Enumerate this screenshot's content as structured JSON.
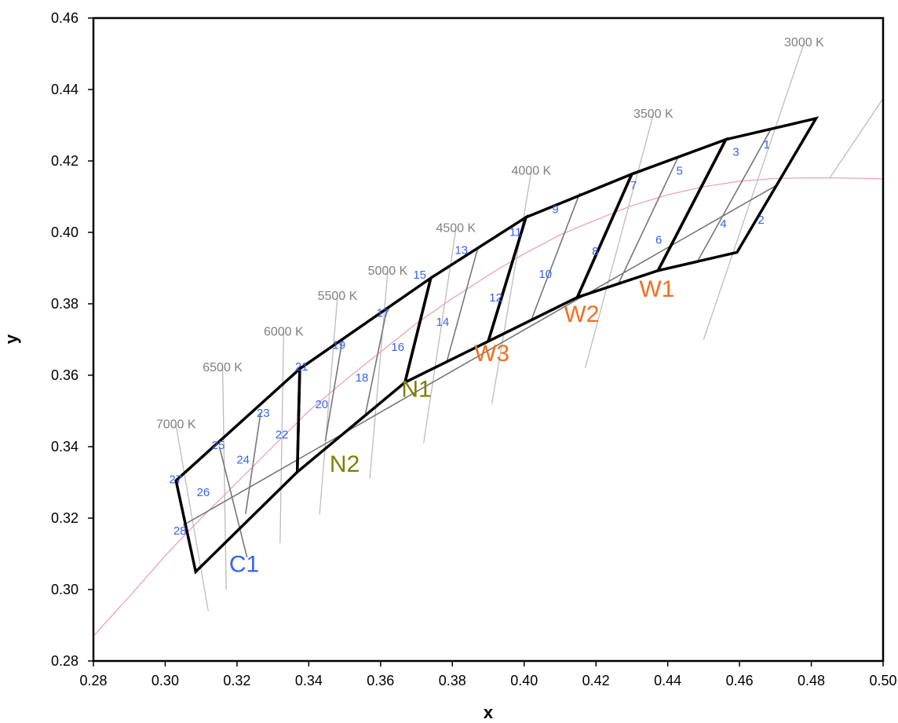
{
  "chart_data": {
    "type": "scatter",
    "title": "",
    "xlabel": "x",
    "ylabel": "y",
    "xlim": [
      0.28,
      0.5
    ],
    "ylim": [
      0.28,
      0.46
    ],
    "x_ticks": [
      "0.28",
      "0.30",
      "0.32",
      "0.34",
      "0.36",
      "0.38",
      "0.40",
      "0.42",
      "0.44",
      "0.46",
      "0.48",
      "0.50"
    ],
    "y_ticks": [
      "0.28",
      "0.30",
      "0.32",
      "0.34",
      "0.36",
      "0.38",
      "0.40",
      "0.42",
      "0.44",
      "0.46"
    ],
    "grid": false,
    "colors": {
      "bin_outline": "#000000",
      "bin_dividers": "#777777",
      "isotherms": "#bcbcbc",
      "cct_labels": "#808080",
      "planckian_locus": "#ef9ab5",
      "bin_numbers": "#3366ee",
      "C_group": "#3366ee",
      "N_group": "#7f7f00",
      "W_group": "#f07020"
    },
    "planckian_locus": [
      [
        0.28,
        0.287
      ],
      [
        0.29,
        0.298
      ],
      [
        0.3,
        0.3095
      ],
      [
        0.31,
        0.32
      ],
      [
        0.32,
        0.33
      ],
      [
        0.33,
        0.34
      ],
      [
        0.34,
        0.35
      ],
      [
        0.35,
        0.3585
      ],
      [
        0.36,
        0.3665
      ],
      [
        0.37,
        0.3745
      ],
      [
        0.38,
        0.3815
      ],
      [
        0.39,
        0.388
      ],
      [
        0.4,
        0.394
      ],
      [
        0.41,
        0.3993
      ],
      [
        0.42,
        0.4035
      ],
      [
        0.43,
        0.4075
      ],
      [
        0.44,
        0.4105
      ],
      [
        0.45,
        0.4128
      ],
      [
        0.46,
        0.4143
      ],
      [
        0.47,
        0.4151
      ],
      [
        0.48,
        0.4153
      ],
      [
        0.49,
        0.4152
      ],
      [
        0.5,
        0.415
      ]
    ],
    "isotherms": [
      {
        "label": "3000 K",
        "from": [
          0.45,
          0.37
        ],
        "to": [
          0.478,
          0.453
        ]
      },
      {
        "label": "3500 K",
        "from": [
          0.417,
          0.362
        ],
        "to": [
          0.436,
          0.433
        ]
      },
      {
        "label": "4000 K",
        "from": [
          0.391,
          0.352
        ],
        "to": [
          0.402,
          0.417
        ]
      },
      {
        "label": "4500 K",
        "from": [
          0.372,
          0.341
        ],
        "to": [
          0.381,
          0.401
        ]
      },
      {
        "label": "5000 K",
        "from": [
          0.357,
          0.331
        ],
        "to": [
          0.362,
          0.389
        ]
      },
      {
        "label": "5500 K",
        "from": [
          0.343,
          0.321
        ],
        "to": [
          0.348,
          0.382
        ]
      },
      {
        "label": "6000 K",
        "from": [
          0.332,
          0.313
        ],
        "to": [
          0.333,
          0.372
        ]
      },
      {
        "label": "6500 K",
        "from": [
          0.317,
          0.3
        ],
        "to": [
          0.316,
          0.362
        ]
      },
      {
        "label": "7000 K",
        "from": [
          0.312,
          0.294
        ],
        "to": [
          0.303,
          0.346
        ]
      },
      {
        "label": "",
        "from": [
          0.5,
          0.37
        ],
        "to": [
          0.515,
          0.38
        ]
      },
      {
        "label": "",
        "from": [
          0.485,
          0.415
        ],
        "to": [
          0.515,
          0.46
        ]
      }
    ],
    "bin_groups": [
      {
        "label": "C1",
        "color_key": "C_group",
        "label_at": [
          0.322,
          0.305
        ],
        "outline": [
          [
            0.303,
            0.3305
          ],
          [
            0.3375,
            0.3618
          ],
          [
            0.3368,
            0.3329
          ],
          [
            0.3085,
            0.305
          ]
        ]
      },
      {
        "label": "N2",
        "color_key": "N_group",
        "label_at": [
          0.35,
          0.333
        ],
        "outline": [
          [
            0.3375,
            0.3618
          ],
          [
            0.374,
            0.3872
          ],
          [
            0.3668,
            0.358
          ],
          [
            0.3368,
            0.3329
          ]
        ]
      },
      {
        "label": "N1",
        "color_key": "N_group",
        "label_at": [
          0.37,
          0.354
        ],
        "outline": [
          [
            0.374,
            0.3872
          ],
          [
            0.4005,
            0.4042
          ],
          [
            0.39,
            0.3695
          ],
          [
            0.3668,
            0.358
          ]
        ]
      },
      {
        "label": "W3",
        "color_key": "W_group",
        "label_at": [
          0.391,
          0.364
        ],
        "outline": [
          [
            0.4005,
            0.4042
          ],
          [
            0.43,
            0.4163
          ],
          [
            0.4148,
            0.3818
          ],
          [
            0.39,
            0.3695
          ]
        ]
      },
      {
        "label": "W2",
        "color_key": "W_group",
        "label_at": [
          0.416,
          0.375
        ],
        "outline": [
          [
            0.43,
            0.4163
          ],
          [
            0.4562,
            0.426
          ],
          [
            0.4373,
            0.3893
          ],
          [
            0.4148,
            0.3818
          ]
        ]
      },
      {
        "label": "W1",
        "color_key": "W_group",
        "label_at": [
          0.437,
          0.382
        ],
        "outline": [
          [
            0.4562,
            0.426
          ],
          [
            0.4813,
            0.4319
          ],
          [
            0.4593,
            0.3944
          ],
          [
            0.4373,
            0.3893
          ]
        ]
      }
    ],
    "bin_dividers": [
      {
        "from": [
          0.305,
          0.318
        ],
        "to": [
          0.47,
          0.413
        ]
      },
      {
        "from": [
          0.3151,
          0.34
        ],
        "to": [
          0.3228,
          0.309
        ]
      },
      {
        "from": [
          0.3266,
          0.3496
        ],
        "to": [
          0.3224,
          0.3212
        ]
      },
      {
        "from": [
          0.3494,
          0.3702
        ],
        "to": [
          0.3446,
          0.3416
        ]
      },
      {
        "from": [
          0.3618,
          0.3787
        ],
        "to": [
          0.3558,
          0.3492
        ]
      },
      {
        "from": [
          0.3872,
          0.396
        ],
        "to": [
          0.3785,
          0.364
        ]
      },
      {
        "from": [
          0.4155,
          0.411
        ],
        "to": [
          0.402,
          0.3755
        ]
      },
      {
        "from": [
          0.4431,
          0.4215
        ],
        "to": [
          0.4262,
          0.3855
        ]
      },
      {
        "from": [
          0.4688,
          0.429
        ],
        "to": [
          0.4483,
          0.3919
        ]
      }
    ],
    "bins": [
      {
        "label": "1",
        "at": [
          0.4676,
          0.4235
        ]
      },
      {
        "label": "2",
        "at": [
          0.466,
          0.4024
        ]
      },
      {
        "label": "3",
        "at": [
          0.459,
          0.4214
        ]
      },
      {
        "label": "4",
        "at": [
          0.4555,
          0.4013
        ]
      },
      {
        "label": "5",
        "at": [
          0.4433,
          0.4162
        ]
      },
      {
        "label": "6",
        "at": [
          0.4375,
          0.3968
        ]
      },
      {
        "label": "7",
        "at": [
          0.4305,
          0.4121
        ]
      },
      {
        "label": "8",
        "at": [
          0.4198,
          0.3936
        ]
      },
      {
        "label": "9",
        "at": [
          0.4087,
          0.4054
        ]
      },
      {
        "label": "10",
        "at": [
          0.4059,
          0.3872
        ]
      },
      {
        "label": "11",
        "at": [
          0.3976,
          0.399
        ]
      },
      {
        "label": "12",
        "at": [
          0.3921,
          0.3807
        ]
      },
      {
        "label": "13",
        "at": [
          0.3825,
          0.394
        ]
      },
      {
        "label": "14",
        "at": [
          0.3773,
          0.3738
        ]
      },
      {
        "label": "15",
        "at": [
          0.3709,
          0.387
        ]
      },
      {
        "label": "16",
        "at": [
          0.3648,
          0.3668
        ]
      },
      {
        "label": "17",
        "at": [
          0.3607,
          0.3764
        ]
      },
      {
        "label": "18",
        "at": [
          0.3548,
          0.3582
        ]
      },
      {
        "label": "19",
        "at": [
          0.3484,
          0.3674
        ]
      },
      {
        "label": "20",
        "at": [
          0.3436,
          0.3508
        ]
      },
      {
        "label": "21",
        "at": [
          0.338,
          0.3613
        ]
      },
      {
        "label": "22",
        "at": [
          0.3325,
          0.3423
        ]
      },
      {
        "label": "23",
        "at": [
          0.3273,
          0.3484
        ]
      },
      {
        "label": "24",
        "at": [
          0.3217,
          0.3353
        ]
      },
      {
        "label": "25",
        "at": [
          0.3148,
          0.3393
        ]
      },
      {
        "label": "26",
        "at": [
          0.3106,
          0.3262
        ]
      },
      {
        "label": "27",
        "at": [
          0.3029,
          0.3298
        ]
      },
      {
        "label": "28",
        "at": [
          0.3041,
          0.3154
        ]
      }
    ]
  }
}
